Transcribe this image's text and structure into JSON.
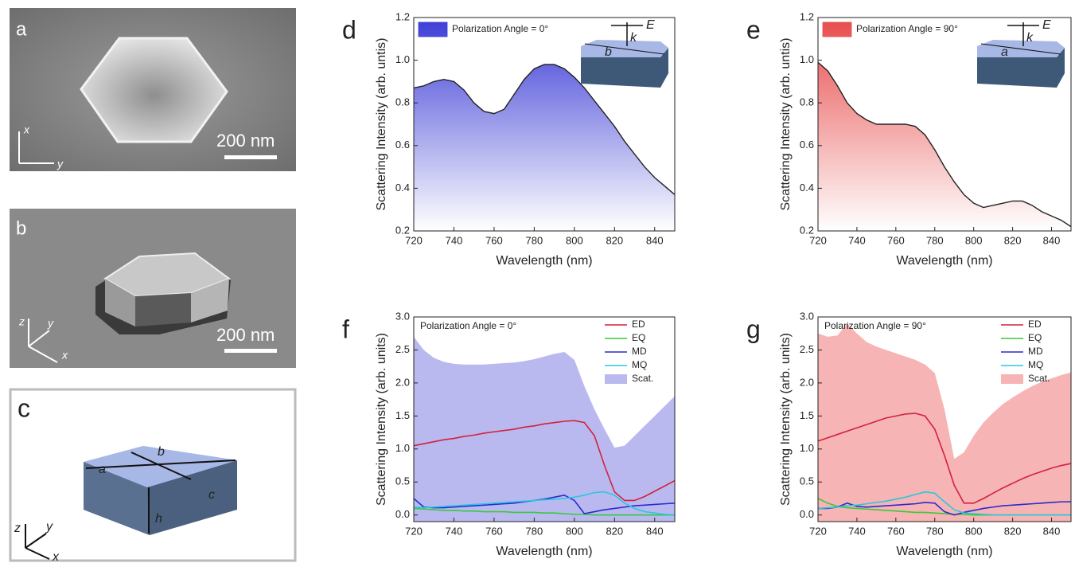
{
  "image_panels": {
    "a": {
      "letter": "a",
      "scale": "200 nm",
      "axes": [
        "x",
        "y"
      ]
    },
    "b": {
      "letter": "b",
      "scale": "200 nm",
      "axes": [
        "z",
        "y",
        "x"
      ]
    },
    "c": {
      "letter": "c",
      "edges": [
        "a",
        "b",
        "c",
        "h"
      ],
      "axes": [
        "z",
        "y",
        "x"
      ]
    }
  },
  "chart_data": [
    {
      "type": "area",
      "panel": "d",
      "xlabel": "Wavelength (nm)",
      "ylabel": "Scattering Intensity (arb. untis)",
      "inset_labels": [
        "E",
        "k",
        "b"
      ],
      "x": [
        720,
        725,
        730,
        735,
        740,
        745,
        750,
        755,
        760,
        765,
        770,
        775,
        780,
        785,
        790,
        795,
        800,
        805,
        810,
        815,
        820,
        825,
        830,
        835,
        840,
        845,
        850
      ],
      "series": [
        {
          "name": "Polarization Angle = 0°",
          "color": "#222222",
          "fill": "#3b3bd6",
          "values": [
            0.87,
            0.88,
            0.9,
            0.91,
            0.9,
            0.86,
            0.8,
            0.76,
            0.75,
            0.77,
            0.84,
            0.91,
            0.96,
            0.98,
            0.98,
            0.96,
            0.92,
            0.87,
            0.81,
            0.75,
            0.69,
            0.62,
            0.56,
            0.5,
            0.45,
            0.41,
            0.37
          ]
        }
      ],
      "xlim": [
        720,
        850
      ],
      "xticks": [
        720,
        740,
        760,
        780,
        800,
        820,
        840
      ],
      "ylim": [
        0.2,
        1.2
      ],
      "yticks": [
        0.2,
        0.4,
        0.6,
        0.8,
        {
          "value": 1,
          "label": "1.0"
        },
        1.2
      ]
    },
    {
      "type": "area",
      "panel": "e",
      "xlabel": "Wavelength (nm)",
      "ylabel": "Scattering Intensity (arb. untis)",
      "inset_labels": [
        "E",
        "k",
        "a"
      ],
      "x": [
        720,
        725,
        730,
        735,
        740,
        745,
        750,
        755,
        760,
        765,
        770,
        775,
        780,
        785,
        790,
        795,
        800,
        805,
        810,
        815,
        820,
        825,
        830,
        835,
        840,
        845,
        850
      ],
      "series": [
        {
          "name": "Polarization Angle = 90°",
          "color": "#222222",
          "fill": "#e84a4a",
          "values": [
            0.99,
            0.95,
            0.88,
            0.8,
            0.75,
            0.72,
            0.7,
            0.7,
            0.7,
            0.7,
            0.69,
            0.65,
            0.58,
            0.5,
            0.43,
            0.37,
            0.33,
            0.31,
            0.32,
            0.33,
            0.34,
            0.34,
            0.32,
            0.29,
            0.27,
            0.25,
            0.22
          ]
        }
      ],
      "xlim": [
        720,
        850
      ],
      "xticks": [
        720,
        740,
        760,
        780,
        800,
        820,
        840
      ],
      "ylim": [
        0.2,
        1.2
      ],
      "yticks": [
        0.2,
        0.4,
        0.6,
        0.8,
        {
          "value": 1,
          "label": "1.0"
        },
        1.2
      ]
    },
    {
      "type": "line",
      "panel": "f",
      "annotation": "Polarization Angle = 0°",
      "xlabel": "Wavelength (nm)",
      "ylabel": "Scattering Intensity (arb. units)",
      "x": [
        720,
        725,
        730,
        735,
        740,
        745,
        750,
        755,
        760,
        765,
        770,
        775,
        780,
        785,
        790,
        795,
        800,
        805,
        810,
        815,
        820,
        825,
        830,
        835,
        840,
        845,
        850
      ],
      "series": [
        {
          "name": "Scat.",
          "style": "area",
          "color": "#b9b9f0",
          "values": [
            2.7,
            2.5,
            2.38,
            2.32,
            2.29,
            2.28,
            2.28,
            2.28,
            2.29,
            2.3,
            2.31,
            2.33,
            2.36,
            2.4,
            2.44,
            2.47,
            2.35,
            1.95,
            1.6,
            1.3,
            1.02,
            1.05,
            1.2,
            1.35,
            1.5,
            1.65,
            1.8
          ]
        },
        {
          "name": "ED",
          "color": "#d4213d",
          "values": [
            1.05,
            1.08,
            1.11,
            1.14,
            1.16,
            1.19,
            1.21,
            1.24,
            1.26,
            1.28,
            1.3,
            1.33,
            1.35,
            1.38,
            1.4,
            1.42,
            1.43,
            1.4,
            1.2,
            0.75,
            0.35,
            0.22,
            0.22,
            0.28,
            0.36,
            0.44,
            0.52
          ]
        },
        {
          "name": "EQ",
          "color": "#3cc83c",
          "values": [
            0.1,
            0.09,
            0.08,
            0.07,
            0.07,
            0.06,
            0.06,
            0.05,
            0.05,
            0.05,
            0.04,
            0.04,
            0.04,
            0.03,
            0.03,
            0.02,
            0.01,
            0.01,
            0,
            0,
            0,
            0,
            0,
            0,
            0,
            0,
            0
          ]
        },
        {
          "name": "MD",
          "color": "#2a2ad0",
          "values": [
            0.25,
            0.12,
            0.11,
            0.11,
            0.12,
            0.13,
            0.14,
            0.15,
            0.16,
            0.17,
            0.18,
            0.2,
            0.22,
            0.24,
            0.27,
            0.3,
            0.22,
            0.02,
            0.05,
            0.08,
            0.1,
            0.12,
            0.14,
            0.15,
            0.16,
            0.17,
            0.18
          ]
        },
        {
          "name": "MQ",
          "color": "#28c8e0",
          "values": [
            0.12,
            0.11,
            0.12,
            0.13,
            0.14,
            0.15,
            0.16,
            0.17,
            0.18,
            0.19,
            0.2,
            0.21,
            0.22,
            0.23,
            0.24,
            0.25,
            0.27,
            0.3,
            0.34,
            0.35,
            0.3,
            0.18,
            0.1,
            0.05,
            0.03,
            0.01,
            0
          ]
        }
      ],
      "legend_order": [
        1,
        2,
        3,
        4,
        0
      ],
      "xlim": [
        720,
        850
      ],
      "xticks": [
        720,
        740,
        760,
        780,
        800,
        820,
        840
      ],
      "ylim": [
        -0.1,
        3.0
      ],
      "yticks": [
        {
          "value": 0,
          "label": "0.0"
        },
        0.5,
        {
          "value": 1,
          "label": "1.0"
        },
        1.5,
        {
          "value": 2,
          "label": "2.0"
        },
        2.5,
        {
          "value": 3,
          "label": "3.0"
        }
      ]
    },
    {
      "type": "line",
      "panel": "g",
      "annotation": "Polarization Angle = 90°",
      "xlabel": "Wavelength (nm)",
      "ylabel": "Scattering Intensity (arb. units)",
      "x": [
        720,
        725,
        730,
        735,
        740,
        745,
        750,
        755,
        760,
        765,
        770,
        775,
        780,
        785,
        790,
        795,
        800,
        805,
        810,
        815,
        820,
        825,
        830,
        835,
        840,
        845,
        850
      ],
      "series": [
        {
          "name": "Scat.",
          "style": "area",
          "color": "#f6b4b4",
          "values": [
            2.75,
            2.7,
            2.72,
            2.9,
            2.75,
            2.62,
            2.55,
            2.5,
            2.45,
            2.4,
            2.35,
            2.28,
            2.15,
            1.6,
            0.85,
            0.95,
            1.2,
            1.4,
            1.55,
            1.68,
            1.78,
            1.87,
            1.95,
            2.02,
            2.07,
            2.12,
            2.16
          ]
        },
        {
          "name": "ED",
          "color": "#d4213d",
          "values": [
            1.12,
            1.17,
            1.22,
            1.27,
            1.32,
            1.37,
            1.42,
            1.47,
            1.5,
            1.53,
            1.54,
            1.5,
            1.3,
            0.9,
            0.45,
            0.18,
            0.18,
            0.25,
            0.33,
            0.41,
            0.48,
            0.55,
            0.61,
            0.66,
            0.71,
            0.75,
            0.78
          ]
        },
        {
          "name": "EQ",
          "color": "#3cc83c",
          "values": [
            0.25,
            0.18,
            0.13,
            0.11,
            0.1,
            0.09,
            0.08,
            0.07,
            0.06,
            0.05,
            0.04,
            0.04,
            0.03,
            0.02,
            0.01,
            0.01,
            0,
            0,
            0,
            0,
            0,
            0,
            0,
            0,
            0,
            0,
            0
          ]
        },
        {
          "name": "MD",
          "color": "#2a2ad0",
          "values": [
            0.1,
            0.1,
            0.12,
            0.18,
            0.13,
            0.12,
            0.13,
            0.14,
            0.15,
            0.16,
            0.17,
            0.19,
            0.18,
            0.05,
            0,
            0.04,
            0.07,
            0.1,
            0.12,
            0.14,
            0.15,
            0.16,
            0.17,
            0.18,
            0.19,
            0.2,
            0.2
          ]
        },
        {
          "name": "MQ",
          "color": "#28c8e0",
          "values": [
            0.1,
            0.11,
            0.12,
            0.14,
            0.15,
            0.17,
            0.19,
            0.21,
            0.24,
            0.27,
            0.31,
            0.35,
            0.33,
            0.2,
            0.08,
            0.03,
            0.02,
            0.01,
            0,
            0,
            0,
            0,
            0,
            0,
            0,
            0,
            0
          ]
        }
      ],
      "legend_order": [
        1,
        2,
        3,
        4,
        0
      ],
      "xlim": [
        720,
        850
      ],
      "xticks": [
        720,
        740,
        760,
        780,
        800,
        820,
        840
      ],
      "ylim": [
        -0.1,
        3.0
      ],
      "yticks": [
        {
          "value": 0,
          "label": "0.0"
        },
        0.5,
        {
          "value": 1,
          "label": "1.0"
        },
        1.5,
        {
          "value": 2,
          "label": "2.0"
        },
        2.5,
        {
          "value": 3,
          "label": "3.0"
        }
      ]
    }
  ]
}
